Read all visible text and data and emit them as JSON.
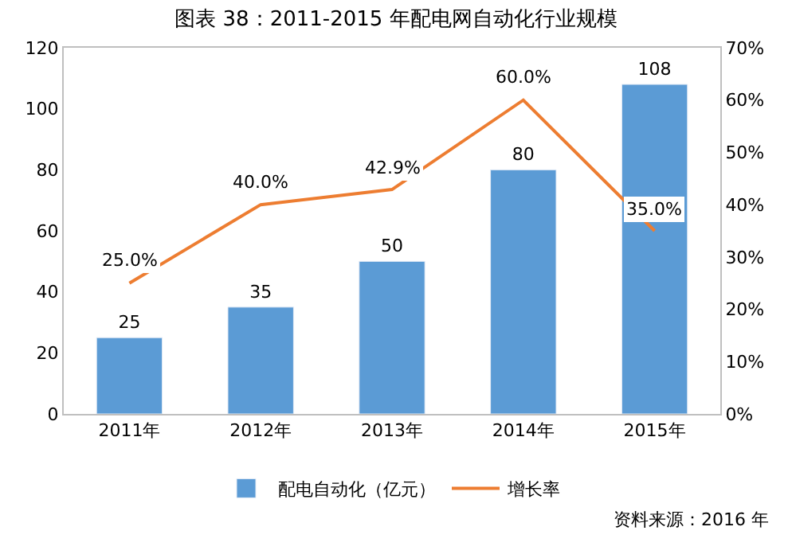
{
  "chart_data": {
    "type": "bar",
    "title": "图表 38：2011-2015 年配电网自动化行业规模",
    "categories": [
      "2011年",
      "2012年",
      "2013年",
      "2014年",
      "2015年"
    ],
    "series": [
      {
        "name": "配电自动化（亿元）",
        "color": "#5b9bd5",
        "values": [
          25,
          35,
          50,
          80,
          108
        ],
        "value_labels": [
          "25",
          "35",
          "50",
          "80",
          "108"
        ]
      },
      {
        "name": "增长率",
        "type": "line",
        "axis": "y2",
        "color": "#ed7d31",
        "values": [
          25.0,
          40.0,
          42.9,
          60.0,
          35.0
        ],
        "value_labels": [
          "25.0%",
          "40.0%",
          "42.9%",
          "60.0%",
          "35.0%"
        ]
      }
    ],
    "ylim": [
      0,
      120
    ],
    "yticks": [
      0,
      20,
      40,
      60,
      80,
      100,
      120
    ],
    "y2lim": [
      0,
      70
    ],
    "y2ticks": [
      {
        "value": 0,
        "label": "0%"
      },
      {
        "value": 10,
        "label": "10%"
      },
      {
        "value": 20,
        "label": "20%"
      },
      {
        "value": 30,
        "label": "30%"
      },
      {
        "value": 40,
        "label": "40%"
      },
      {
        "value": 50,
        "label": "50%"
      },
      {
        "value": 60,
        "label": "60%"
      },
      {
        "value": 70,
        "label": "70%"
      }
    ],
    "legend": "bottom",
    "marker": "none",
    "line_style": "solid",
    "annotations": [
      "资料来源：2016 年"
    ]
  }
}
